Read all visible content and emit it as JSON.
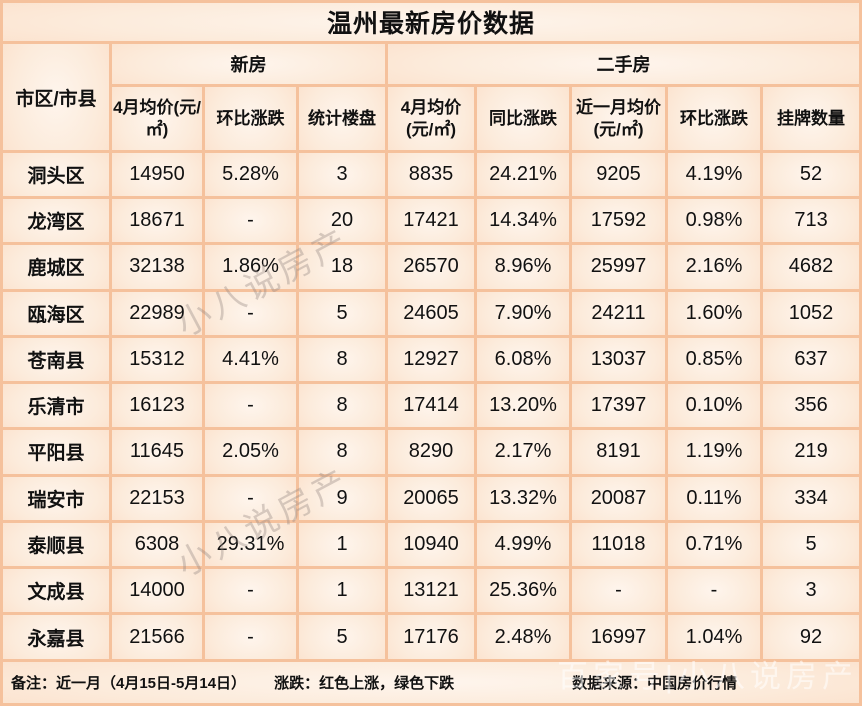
{
  "chart_data": {
    "type": "table",
    "title": "温州最新房价数据",
    "corner_header": "市区/市县",
    "column_groups": [
      {
        "label": "新房",
        "colspan": 3
      },
      {
        "label": "二手房",
        "colspan": 5
      }
    ],
    "sub_headers": [
      "4月均价(元/㎡)",
      "环比涨跌",
      "统计楼盘",
      "4月均价(元/㎡)",
      "同比涨跌",
      "近一月均价(元/㎡)",
      "环比涨跌",
      "挂牌数量"
    ],
    "rows": [
      {
        "cells": [
          {
            "t": "洞头区"
          },
          {
            "t": "14950"
          },
          {
            "t": "5.28%",
            "c": "red"
          },
          {
            "t": "3"
          },
          {
            "t": "8835"
          },
          {
            "t": "24.21%",
            "c": "green"
          },
          {
            "t": "9205"
          },
          {
            "t": "4.19%",
            "c": "red"
          },
          {
            "t": "52"
          }
        ]
      },
      {
        "cells": [
          {
            "t": "龙湾区"
          },
          {
            "t": "18671"
          },
          {
            "t": "-"
          },
          {
            "t": "20"
          },
          {
            "t": "17421"
          },
          {
            "t": "14.34%",
            "c": "red"
          },
          {
            "t": "17592"
          },
          {
            "t": "0.98%",
            "c": "red"
          },
          {
            "t": "713"
          }
        ]
      },
      {
        "cells": [
          {
            "t": "鹿城区"
          },
          {
            "t": "32138"
          },
          {
            "t": "1.86%",
            "c": "red"
          },
          {
            "t": "18"
          },
          {
            "t": "26570"
          },
          {
            "t": "8.96%",
            "c": "red"
          },
          {
            "t": "25997"
          },
          {
            "t": "2.16%",
            "c": "green"
          },
          {
            "t": "4682"
          }
        ]
      },
      {
        "cells": [
          {
            "t": "瓯海区"
          },
          {
            "t": "22989"
          },
          {
            "t": "-"
          },
          {
            "t": "5"
          },
          {
            "t": "24605"
          },
          {
            "t": "7.90%",
            "c": "red"
          },
          {
            "t": "24211"
          },
          {
            "t": "1.60%",
            "c": "green"
          },
          {
            "t": "1052"
          }
        ]
      },
      {
        "cells": [
          {
            "t": "苍南县"
          },
          {
            "t": "15312"
          },
          {
            "t": "4.41%",
            "c": "green"
          },
          {
            "t": "8"
          },
          {
            "t": "12927"
          },
          {
            "t": "6.08%",
            "c": "red"
          },
          {
            "t": "13037"
          },
          {
            "t": "0.85%",
            "c": "red"
          },
          {
            "t": "637"
          }
        ]
      },
      {
        "cells": [
          {
            "t": "乐清市"
          },
          {
            "t": "16123"
          },
          {
            "t": "-"
          },
          {
            "t": "8"
          },
          {
            "t": "17414"
          },
          {
            "t": "13.20%",
            "c": "red"
          },
          {
            "t": "17397"
          },
          {
            "t": "0.10%",
            "c": "green"
          },
          {
            "t": "356"
          }
        ]
      },
      {
        "cells": [
          {
            "t": "平阳县"
          },
          {
            "t": "11645"
          },
          {
            "t": "2.05%",
            "c": "green"
          },
          {
            "t": "8"
          },
          {
            "t": "8290"
          },
          {
            "t": "2.17%",
            "c": "green"
          },
          {
            "t": "8191"
          },
          {
            "t": "1.19%",
            "c": "green"
          },
          {
            "t": "219"
          }
        ]
      },
      {
        "cells": [
          {
            "t": "瑞安市"
          },
          {
            "t": "22153"
          },
          {
            "t": "-"
          },
          {
            "t": "9"
          },
          {
            "t": "20065"
          },
          {
            "t": "13.32%",
            "c": "red"
          },
          {
            "t": "20087"
          },
          {
            "t": "0.11%",
            "c": "red"
          },
          {
            "t": "334"
          }
        ]
      },
      {
        "cells": [
          {
            "t": "泰顺县"
          },
          {
            "t": "6308"
          },
          {
            "t": "29.31%",
            "c": "green"
          },
          {
            "t": "1"
          },
          {
            "t": "10940"
          },
          {
            "t": "4.99%",
            "c": "red"
          },
          {
            "t": "11018"
          },
          {
            "t": "0.71%",
            "c": "red"
          },
          {
            "t": "5"
          }
        ]
      },
      {
        "cells": [
          {
            "t": "文成县"
          },
          {
            "t": "14000"
          },
          {
            "t": "-"
          },
          {
            "t": "1"
          },
          {
            "t": "13121"
          },
          {
            "t": "25.36%",
            "c": "green"
          },
          {
            "t": "-"
          },
          {
            "t": "-"
          },
          {
            "t": "3"
          }
        ]
      },
      {
        "cells": [
          {
            "t": "永嘉县"
          },
          {
            "t": "21566"
          },
          {
            "t": "-"
          },
          {
            "t": "5"
          },
          {
            "t": "17176"
          },
          {
            "t": "2.48%",
            "c": "green"
          },
          {
            "t": "16997"
          },
          {
            "t": "1.04%",
            "c": "green"
          },
          {
            "t": "92"
          }
        ]
      }
    ],
    "legend_note": "红色上涨，绿色下跌"
  },
  "footer": {
    "note": "备注：近一月（4月15日-5月14日）",
    "legend": "涨跌：红色上涨，绿色下跌",
    "source": "数据来源：中国房价行情"
  },
  "watermarks": {
    "diagonal": "小八说房产",
    "footer_wm": "百家号|小八说房产"
  },
  "colors": {
    "up_red": "#ff0000",
    "down_green": "#00b050",
    "border": "#f5c19c",
    "cell_bg": "#fbe3cf"
  }
}
